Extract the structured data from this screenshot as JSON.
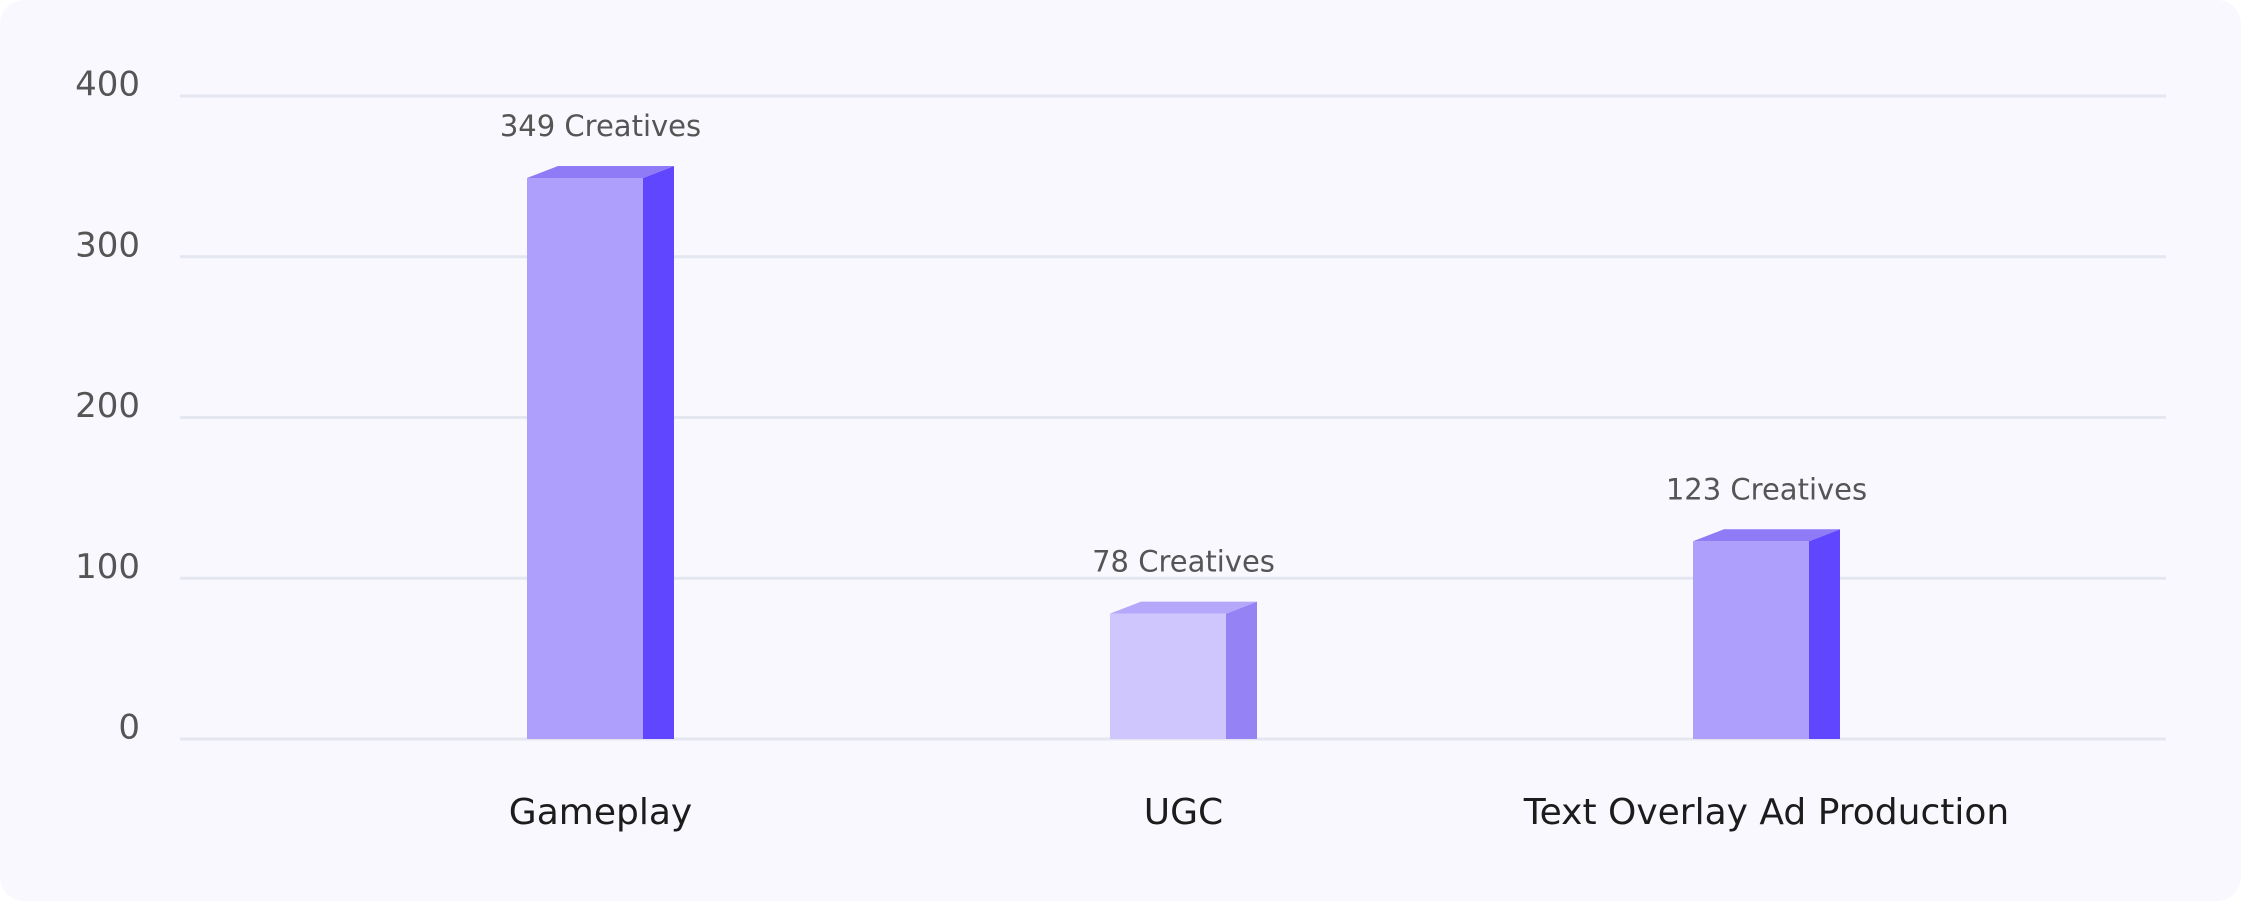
{
  "chart_data": {
    "type": "bar3d",
    "categories": [
      "Gameplay",
      "UGC",
      "Text Overlay Ad Production"
    ],
    "values": [
      349,
      78,
      123
    ],
    "value_labels": [
      "349 Creatives",
      "78 Creatives",
      "123 Creatives"
    ],
    "colors": [
      "#ae9ffd",
      "#cfc6fe",
      "#ae9ffd"
    ],
    "side_colors": [
      "#6046fe",
      "#9582f4",
      "#6046fe"
    ],
    "top_colors": [
      "#8e7bf5",
      "#b5a8fb",
      "#8e7bf5"
    ],
    "ylim": [
      0,
      400
    ],
    "yticks": [
      0,
      100,
      200,
      300,
      400
    ],
    "grid": true
  }
}
